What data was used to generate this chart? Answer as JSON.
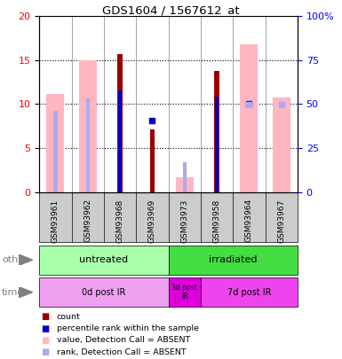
{
  "title": "GDS1604 / 1567612_at",
  "samples": [
    "GSM93961",
    "GSM93962",
    "GSM93968",
    "GSM93969",
    "GSM93973",
    "GSM93958",
    "GSM93964",
    "GSM93967"
  ],
  "count_values": [
    null,
    null,
    15.7,
    7.1,
    null,
    13.8,
    null,
    null
  ],
  "rank_values": [
    null,
    null,
    11.6,
    null,
    null,
    10.9,
    null,
    null
  ],
  "rank_dot_values": [
    null,
    null,
    null,
    8.1,
    null,
    null,
    10.0,
    null
  ],
  "absent_value": [
    11.2,
    15.0,
    null,
    null,
    1.7,
    null,
    16.8,
    10.8
  ],
  "absent_rank": [
    9.2,
    10.7,
    null,
    null,
    3.4,
    null,
    null,
    null
  ],
  "absent_rank_dot": [
    null,
    null,
    null,
    null,
    null,
    null,
    9.9,
    9.9
  ],
  "ylim": [
    0,
    20
  ],
  "yticks": [
    0,
    5,
    10,
    15,
    20
  ],
  "ytick_labels_left": [
    "0",
    "5",
    "10",
    "15",
    "20"
  ],
  "ytick_labels_right": [
    "0",
    "25",
    "50",
    "75",
    "100%"
  ],
  "group_other": [
    {
      "label": "untreated",
      "start": 0,
      "end": 4,
      "color": "#aaffaa"
    },
    {
      "label": "irradiated",
      "start": 4,
      "end": 8,
      "color": "#44dd44"
    }
  ],
  "group_time": [
    {
      "label": "0d post IR",
      "start": 0,
      "end": 4,
      "color": "#f0a0f0"
    },
    {
      "label": "3d post\nIR",
      "start": 4,
      "end": 5,
      "color": "#dd00dd"
    },
    {
      "label": "7d post IR",
      "start": 5,
      "end": 8,
      "color": "#ee44ee"
    }
  ],
  "color_count": "#990000",
  "color_rank": "#0000cc",
  "color_absent_value": "#FFB6C1",
  "color_absent_rank": "#aaaaee",
  "plot_bg": "#e8e8e8",
  "label_area_bg": "#cccccc"
}
